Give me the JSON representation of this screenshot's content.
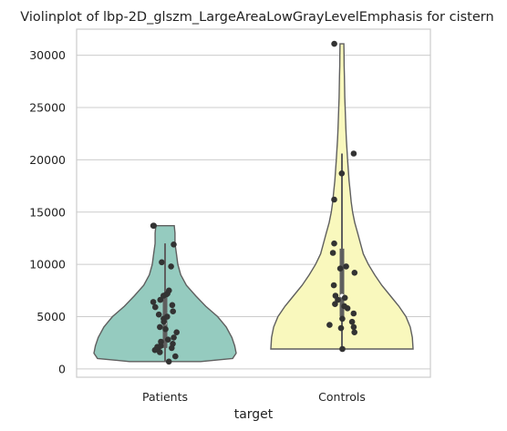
{
  "chart_data": {
    "type": "violin",
    "title": "Violinplot of lbp-2D_glszm_LargeAreaLowGrayLevelEmphasis for cistern",
    "xlabel": "target",
    "ylabel": "",
    "ylim": [
      -800,
      32500
    ],
    "yticks": [
      0,
      5000,
      10000,
      15000,
      20000,
      25000,
      30000
    ],
    "grid": true,
    "categories": [
      "Patients",
      "Controls"
    ],
    "colors": {
      "Patients": "#95cbbf",
      "Controls": "#f9f8bd",
      "points": "#333333",
      "outline": "#5f5f5f"
    },
    "series": [
      {
        "name": "Patients",
        "box": {
          "whisker_low": 700,
          "q1": 2000,
          "median": 4400,
          "q3": 6800,
          "whisker_high": 12000
        },
        "range": [
          700,
          13700
        ],
        "points": [
          700,
          1200,
          1600,
          1800,
          2000,
          2000,
          2100,
          2200,
          2400,
          2600,
          2800,
          3000,
          3500,
          3800,
          4000,
          4500,
          4800,
          5000,
          5200,
          5500,
          5900,
          6100,
          6400,
          6600,
          7000,
          7100,
          7200,
          7500,
          9800,
          10200,
          11900,
          13700,
          13700
        ],
        "density": [
          [
            700,
            0.5
          ],
          [
            1000,
            0.95
          ],
          [
            1500,
            1.0
          ],
          [
            2200,
            0.98
          ],
          [
            3000,
            0.94
          ],
          [
            4000,
            0.86
          ],
          [
            5000,
            0.74
          ],
          [
            6000,
            0.57
          ],
          [
            7000,
            0.43
          ],
          [
            8000,
            0.3
          ],
          [
            9000,
            0.22
          ],
          [
            10000,
            0.18
          ],
          [
            11000,
            0.16
          ],
          [
            12000,
            0.14
          ],
          [
            13000,
            0.14
          ],
          [
            13700,
            0.13
          ]
        ]
      },
      {
        "name": "Controls",
        "box": {
          "whisker_low": 1900,
          "q1": 5000,
          "median": 7000,
          "q3": 11500,
          "whisker_high": 20600
        },
        "range": [
          1900,
          31100
        ],
        "points": [
          1900,
          3500,
          3900,
          4000,
          4200,
          4500,
          4800,
          5300,
          5800,
          6000,
          6200,
          6600,
          6800,
          7000,
          8000,
          9200,
          9600,
          9800,
          11100,
          12000,
          16200,
          18700,
          20600,
          31100
        ],
        "density": [
          [
            1900,
            1.0
          ],
          [
            3000,
            0.99
          ],
          [
            4000,
            0.96
          ],
          [
            5000,
            0.9
          ],
          [
            6000,
            0.8
          ],
          [
            7000,
            0.68
          ],
          [
            8000,
            0.56
          ],
          [
            9000,
            0.46
          ],
          [
            10000,
            0.37
          ],
          [
            11000,
            0.3
          ],
          [
            12000,
            0.26
          ],
          [
            13000,
            0.22
          ],
          [
            14000,
            0.18
          ],
          [
            15000,
            0.15
          ],
          [
            16000,
            0.13
          ],
          [
            17000,
            0.115
          ],
          [
            18000,
            0.1
          ],
          [
            19000,
            0.09
          ],
          [
            20000,
            0.08
          ],
          [
            21000,
            0.07
          ],
          [
            22000,
            0.062
          ],
          [
            23000,
            0.055
          ],
          [
            24000,
            0.05
          ],
          [
            25000,
            0.045
          ],
          [
            26000,
            0.04
          ],
          [
            27000,
            0.037
          ],
          [
            28000,
            0.034
          ],
          [
            29000,
            0.031
          ],
          [
            30000,
            0.029
          ],
          [
            31100,
            0.027
          ]
        ]
      }
    ]
  }
}
